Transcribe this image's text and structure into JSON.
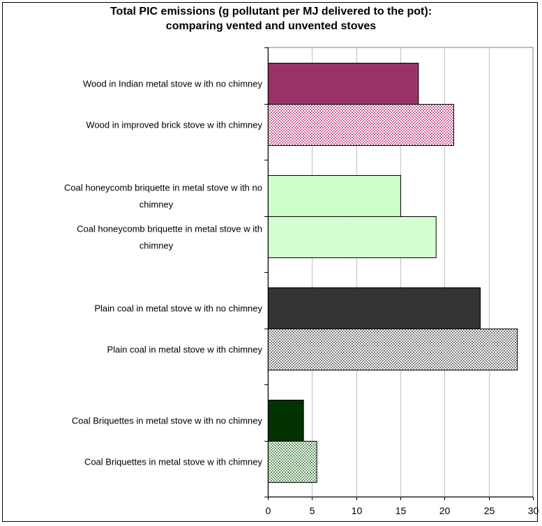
{
  "chart_data": {
    "type": "bar",
    "orientation": "horizontal",
    "title_lines": [
      "Total PIC emissions (g pollutant per MJ delivered to the pot):",
      "comparing vented and unvented stoves"
    ],
    "xlabel": "",
    "ylabel": "",
    "xlim": [
      0,
      30
    ],
    "xticks": [
      0,
      5,
      10,
      15,
      20,
      25,
      30
    ],
    "grid": "vertical",
    "legend": "none",
    "groups": [
      {
        "bars": [
          {
            "label_lines": [
              "Wood in Indian metal stove w ith no chimney"
            ],
            "value": 17,
            "color": "#993366",
            "pattern": "solid"
          },
          {
            "label_lines": [
              "Wood in improved brick stove w ith chimney"
            ],
            "value": 21,
            "color": "#cc6699",
            "pattern": "checker"
          }
        ]
      },
      {
        "bars": [
          {
            "label_lines": [
              "Coal honeycomb briquette in metal stove w ith no",
              "chimney"
            ],
            "value": 15,
            "color": "#ccffcc",
            "pattern": "solid"
          },
          {
            "label_lines": [
              "Coal honeycomb briquette in metal stove w ith",
              "chimney"
            ],
            "value": 19,
            "color": "#ccffcc",
            "pattern": "dots"
          }
        ]
      },
      {
        "bars": [
          {
            "label_lines": [
              "Plain coal in metal stove w ith no chimney"
            ],
            "value": 24,
            "color": "#333333",
            "pattern": "solid"
          },
          {
            "label_lines": [
              "Plain coal in metal stove w ith chimney"
            ],
            "value": 28.2,
            "color": "#808080",
            "pattern": "checker"
          }
        ]
      },
      {
        "bars": [
          {
            "label_lines": [
              "Coal Briquettes in metal stove w ith no chimney"
            ],
            "value": 4,
            "color": "#003300",
            "pattern": "solid"
          },
          {
            "label_lines": [
              "Coal Briquettes in metal stove w ith chimney"
            ],
            "value": 5.5,
            "color": "#669966",
            "pattern": "checker"
          }
        ]
      }
    ]
  }
}
